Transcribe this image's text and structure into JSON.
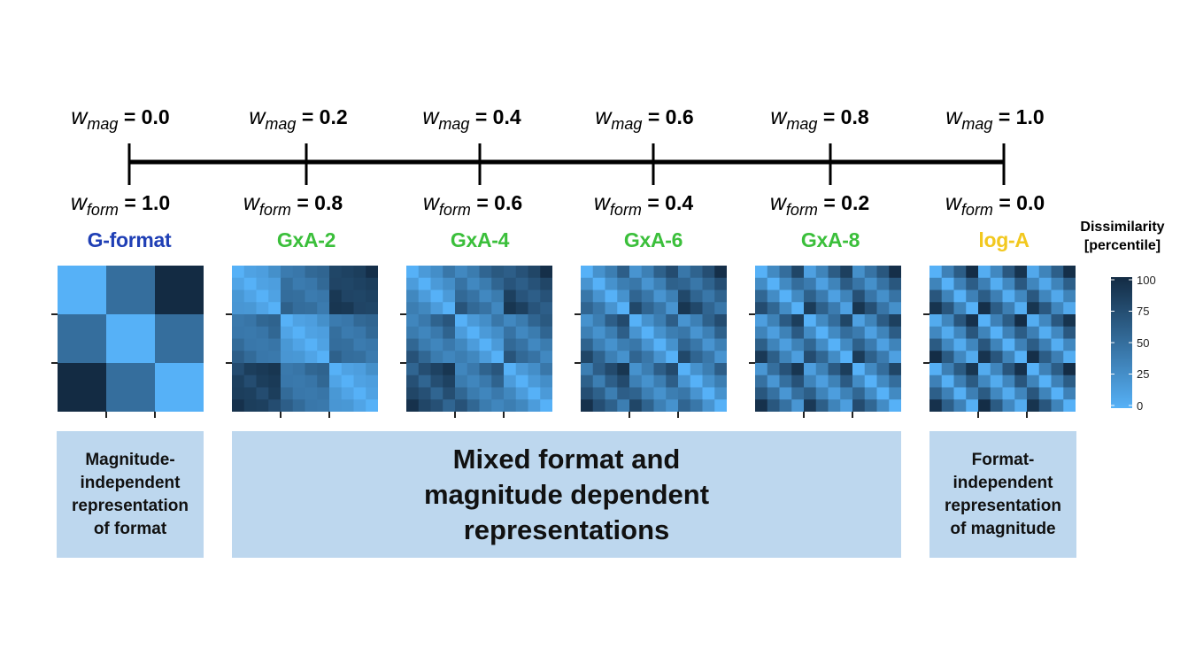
{
  "weights": [
    {
      "mag": "0.0",
      "form": "1.0"
    },
    {
      "mag": "0.2",
      "form": "0.8"
    },
    {
      "mag": "0.4",
      "form": "0.6"
    },
    {
      "mag": "0.6",
      "form": "0.4"
    },
    {
      "mag": "0.8",
      "form": "0.2"
    },
    {
      "mag": "1.0",
      "form": "0.0"
    }
  ],
  "weight_symbol": "w",
  "mag_subscript": "mag",
  "form_subscript": "form",
  "models": [
    {
      "name": "G-format",
      "color": "#1f3fb5"
    },
    {
      "name": "GxA-2",
      "color": "#3bbf3b"
    },
    {
      "name": "GxA-4",
      "color": "#3bbf3b"
    },
    {
      "name": "GxA-6",
      "color": "#3bbf3b"
    },
    {
      "name": "GxA-8",
      "color": "#3bbf3b"
    },
    {
      "name": "log-A",
      "color": "#f2c81f"
    }
  ],
  "colorbar": {
    "title_line1": "Dissimilarity",
    "title_line2": "[percentile]",
    "ticks": [
      "100",
      "75",
      "50",
      "25",
      "0"
    ],
    "color_low": "#56b1f7",
    "color_high": "#132b43"
  },
  "descriptions": {
    "left": "Magnitude-independent representation of format",
    "middle": "Mixed format and magnitude dependent representations",
    "right": "Format-independent representation of magnitude"
  }
}
